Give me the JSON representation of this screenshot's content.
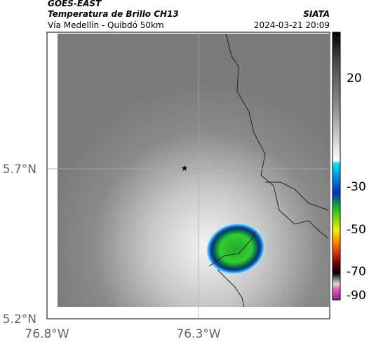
{
  "header": {
    "source": "GOES-EAST",
    "title": "Temperatura de Brillo CH13",
    "credit": "SIATA",
    "subtitle": "Vía Medellín - Quibdó 50km",
    "timestamp": "2024-03-21 20:09"
  },
  "map": {
    "lat_labels": [
      "5.7°N",
      "5.2°N"
    ],
    "lon_labels": [
      "76.8°W",
      "76.3°W"
    ]
  },
  "colorbar": {
    "tick_labels": [
      "20",
      "-30",
      "-50",
      "-70",
      "-90"
    ]
  }
}
